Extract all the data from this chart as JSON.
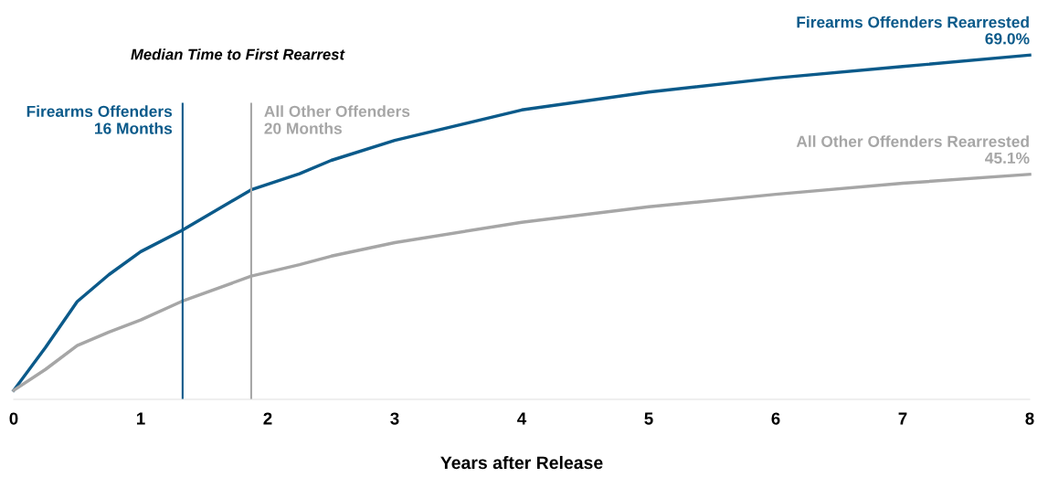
{
  "chart_data": {
    "type": "line",
    "xlabel": "Years after Release",
    "x": [
      0,
      0.25,
      0.5,
      0.75,
      1,
      1.32,
      1.87,
      2.25,
      2.5,
      3,
      4,
      5,
      6,
      7,
      8
    ],
    "series": [
      {
        "name": "Firearms Offenders Rearrested",
        "color": "#0b5a8a",
        "values": [
          1.8,
          10.4,
          19.6,
          25.0,
          29.6,
          33.8,
          42.0,
          45.2,
          47.9,
          51.9,
          58.0,
          61.6,
          64.4,
          66.7,
          69.0
        ],
        "value_labels": [
          null,
          null,
          null,
          null,
          null,
          null,
          null,
          null,
          null,
          null,
          null,
          null,
          null,
          null,
          "69.0%"
        ]
      },
      {
        "name": "All Other Offenders Rearrested",
        "color": "#a6a6a6",
        "values": [
          1.8,
          6.0,
          10.8,
          13.5,
          15.9,
          19.6,
          24.7,
          27.0,
          28.7,
          31.4,
          35.5,
          38.6,
          41.1,
          43.3,
          45.1
        ],
        "value_labels": [
          null,
          null,
          null,
          null,
          null,
          null,
          null,
          null,
          null,
          null,
          null,
          null,
          null,
          null,
          "45.1%"
        ]
      }
    ],
    "xlim": [
      0,
      8
    ],
    "xticks": [
      0,
      1,
      2,
      3,
      4,
      5,
      6,
      7,
      8
    ],
    "tick_labels": "x",
    "grid": false,
    "marker": "none",
    "line_style": "solid",
    "ref_lines": [
      {
        "axis": "x",
        "value": 1.33,
        "label": "Firearms Offenders\n16 Months",
        "color": "#0b5a8a"
      },
      {
        "axis": "x",
        "value": 1.87,
        "label": "All Other Offenders\n20 Months",
        "color": "#a6a6a6"
      }
    ],
    "annotations": [
      "Median Time to First Rearrest"
    ]
  }
}
